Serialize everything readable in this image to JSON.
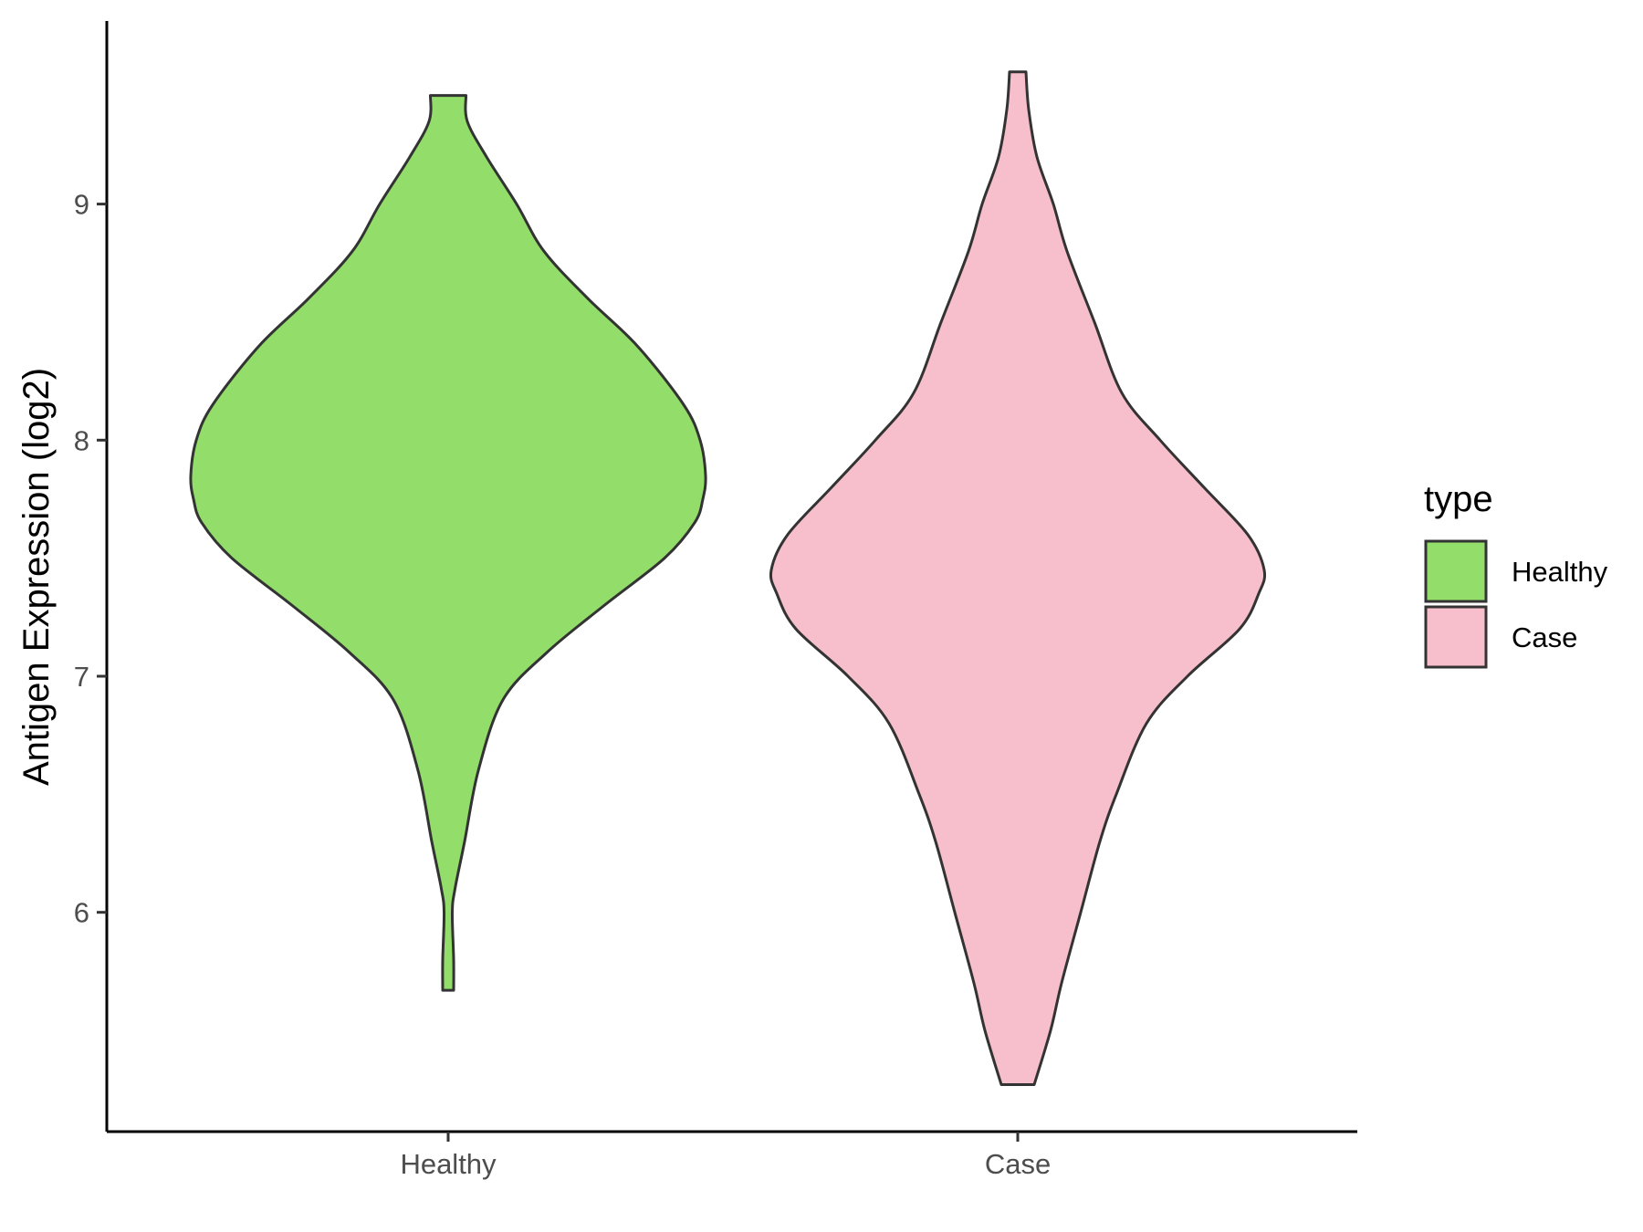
{
  "chart_data": {
    "type": "violin",
    "title": "",
    "xlabel": "",
    "ylabel": "Antigen Expression (log2)",
    "categories": [
      "Healthy",
      "Case"
    ],
    "y_ticks": [
      6,
      7,
      8,
      9
    ],
    "y_tick_labels": [
      "6",
      "7",
      "8",
      "9"
    ],
    "ylim": [
      5.1,
      9.8
    ],
    "grid": false,
    "legend": {
      "title": "type",
      "position": "right",
      "entries": [
        {
          "label": "Healthy",
          "color": "#93dd6a"
        },
        {
          "label": "Case",
          "color": "#f7bfcb"
        }
      ]
    },
    "series": [
      {
        "category": "Healthy",
        "color": "#93dd6a",
        "y_min": 5.67,
        "y_max": 9.46,
        "density_profile": [
          [
            5.67,
            0.02
          ],
          [
            5.8,
            0.02
          ],
          [
            6.0,
            0.015
          ],
          [
            6.1,
            0.025
          ],
          [
            6.3,
            0.06
          ],
          [
            6.6,
            0.11
          ],
          [
            6.9,
            0.2
          ],
          [
            7.1,
            0.36
          ],
          [
            7.3,
            0.57
          ],
          [
            7.5,
            0.79
          ],
          [
            7.65,
            0.9
          ],
          [
            7.75,
            0.93
          ],
          [
            7.85,
            0.94
          ],
          [
            8.0,
            0.92
          ],
          [
            8.15,
            0.86
          ],
          [
            8.4,
            0.69
          ],
          [
            8.6,
            0.51
          ],
          [
            8.8,
            0.35
          ],
          [
            9.0,
            0.25
          ],
          [
            9.2,
            0.14
          ],
          [
            9.35,
            0.07
          ],
          [
            9.46,
            0.065
          ]
        ]
      },
      {
        "category": "Case",
        "color": "#f7bfcb",
        "y_min": 5.27,
        "y_max": 9.56,
        "density_profile": [
          [
            5.27,
            0.06
          ],
          [
            5.5,
            0.12
          ],
          [
            5.7,
            0.16
          ],
          [
            6.0,
            0.23
          ],
          [
            6.3,
            0.3
          ],
          [
            6.5,
            0.36
          ],
          [
            6.8,
            0.47
          ],
          [
            7.0,
            0.62
          ],
          [
            7.2,
            0.81
          ],
          [
            7.35,
            0.88
          ],
          [
            7.45,
            0.9
          ],
          [
            7.6,
            0.84
          ],
          [
            7.8,
            0.68
          ],
          [
            8.0,
            0.52
          ],
          [
            8.2,
            0.38
          ],
          [
            8.5,
            0.28
          ],
          [
            8.8,
            0.18
          ],
          [
            9.0,
            0.13
          ],
          [
            9.2,
            0.07
          ],
          [
            9.4,
            0.04
          ],
          [
            9.56,
            0.03
          ]
        ]
      }
    ]
  }
}
